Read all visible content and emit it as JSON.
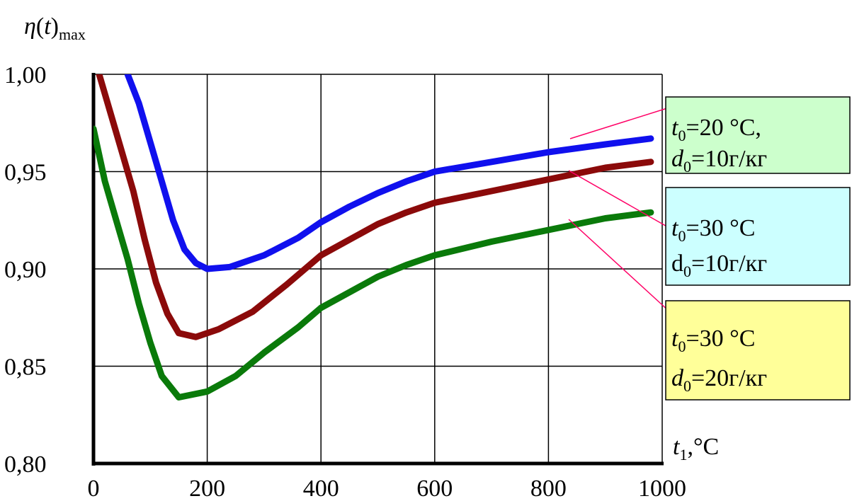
{
  "chart_data": {
    "type": "line",
    "ylabel": {
      "symbol": "η",
      "arg": "(t)",
      "sub": "max"
    },
    "xlabel": {
      "symbol": "t",
      "sub": "1",
      "unit": ",°C"
    },
    "xlim": [
      0,
      1000
    ],
    "ylim": [
      0.8,
      1.0
    ],
    "x_ticks": [
      "0",
      "200",
      "400",
      "600",
      "800",
      "1000"
    ],
    "y_ticks": [
      "0,80",
      "0,85",
      "0,90",
      "0,95",
      "1,00"
    ],
    "grid": true,
    "series": [
      {
        "color": "#1010ee",
        "x": [
          60,
          80,
          100,
          120,
          140,
          160,
          180,
          200,
          240,
          300,
          360,
          400,
          450,
          500,
          550,
          600,
          700,
          800,
          900,
          980
        ],
        "y": [
          1.0,
          0.985,
          0.965,
          0.945,
          0.925,
          0.91,
          0.903,
          0.9,
          0.901,
          0.907,
          0.916,
          0.924,
          0.932,
          0.939,
          0.945,
          0.95,
          0.955,
          0.96,
          0.964,
          0.967
        ]
      },
      {
        "color": "#8b0a0a",
        "x": [
          10,
          30,
          50,
          70,
          90,
          110,
          130,
          150,
          180,
          220,
          280,
          340,
          400,
          450,
          500,
          550,
          600,
          700,
          800,
          900,
          980
        ],
        "y": [
          1.0,
          0.98,
          0.96,
          0.94,
          0.915,
          0.893,
          0.877,
          0.867,
          0.865,
          0.869,
          0.878,
          0.892,
          0.907,
          0.915,
          0.923,
          0.929,
          0.934,
          0.94,
          0.946,
          0.952,
          0.955
        ]
      },
      {
        "color": "#0a7a0a",
        "x": [
          0,
          20,
          40,
          60,
          80,
          100,
          120,
          150,
          200,
          250,
          300,
          360,
          400,
          450,
          500,
          550,
          600,
          700,
          800,
          900,
          980
        ],
        "y": [
          0.972,
          0.945,
          0.925,
          0.905,
          0.882,
          0.862,
          0.845,
          0.834,
          0.837,
          0.845,
          0.857,
          0.87,
          0.88,
          0.888,
          0.896,
          0.902,
          0.907,
          0.914,
          0.92,
          0.926,
          0.929
        ]
      }
    ],
    "annotations": [
      {
        "bg": "#ccffcc",
        "line1": {
          "sym": "t",
          "sub": "0",
          "text": "=20 °C,"
        },
        "line2": {
          "sym": "d",
          "sub": "0",
          "text": "=10г/кг"
        }
      },
      {
        "bg": "#ccffff",
        "line1": {
          "sym": "t",
          "sub": "0",
          "text": "=30 °C"
        },
        "line2": {
          "sym": "d",
          "sub": "0",
          "text": "=10г/кг",
          "upright": true
        }
      },
      {
        "bg": "#ffff99",
        "line1": {
          "sym": "t",
          "sub": "0",
          "text": "=30 °C"
        },
        "line2": {
          "sym": "d",
          "sub": "0",
          "text": "=20г/кг"
        }
      }
    ]
  }
}
